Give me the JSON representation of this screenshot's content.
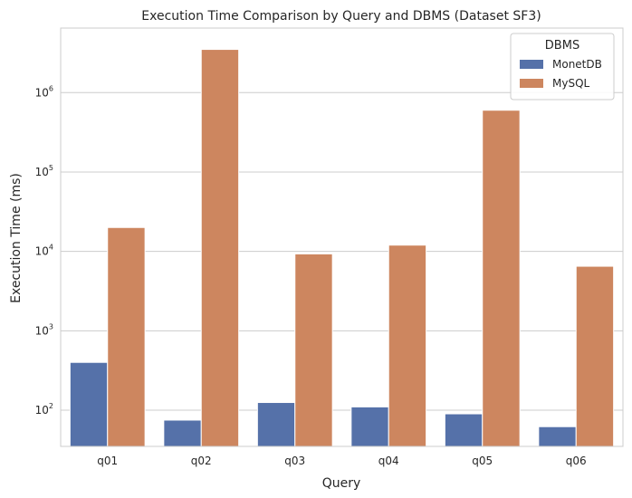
{
  "chart_data": {
    "type": "bar",
    "title": "Execution Time Comparison by Query and DBMS (Dataset SF3)",
    "xlabel": "Query",
    "ylabel": "Execution Time (ms)",
    "y_scale": "log",
    "ylim": [
      35,
      6500000
    ],
    "y_ticks": [
      {
        "value": 100,
        "base": "10",
        "exp": "2"
      },
      {
        "value": 1000,
        "base": "10",
        "exp": "3"
      },
      {
        "value": 10000,
        "base": "10",
        "exp": "4"
      },
      {
        "value": 100000,
        "base": "10",
        "exp": "5"
      },
      {
        "value": 1000000,
        "base": "10",
        "exp": "6"
      }
    ],
    "categories": [
      "q01",
      "q02",
      "q03",
      "q04",
      "q05",
      "q06"
    ],
    "series": [
      {
        "name": "MonetDB",
        "color": "#5571a9",
        "values": [
          400,
          75,
          125,
          110,
          90,
          62
        ]
      },
      {
        "name": "MySQL",
        "color": "#cd865f",
        "values": [
          20000,
          3500000,
          9300,
          12000,
          600000,
          6500
        ]
      }
    ],
    "legend": {
      "title": "DBMS",
      "position": "top-right"
    },
    "grid": "horizontal"
  }
}
